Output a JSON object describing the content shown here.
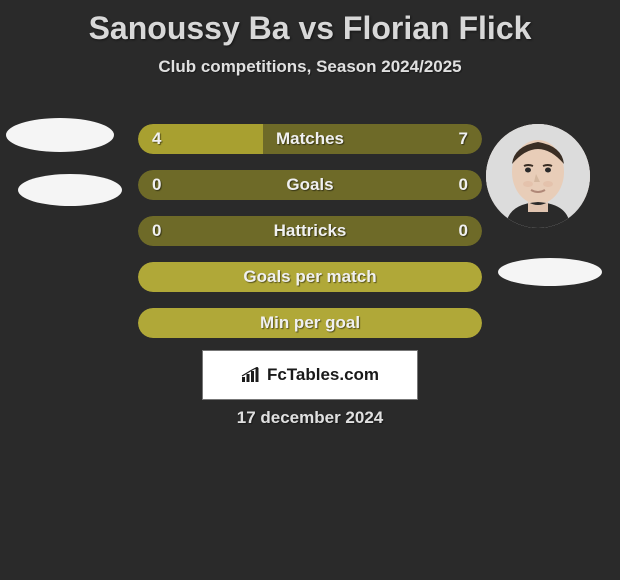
{
  "title": "Sanoussy Ba vs Florian Flick",
  "subtitle": "Club competitions, Season 2024/2025",
  "date": "17 december 2024",
  "colors": {
    "background": "#2a2a2a",
    "bar_fill": "#a8a030",
    "bar_empty": "#6e6a28",
    "bar_full_fill": "#b0a838",
    "text": "#e8e8e8",
    "badge_bg": "#ffffff",
    "badge_text": "#1a1a1a",
    "shape": "#f5f5f5"
  },
  "typography": {
    "title_size": 32,
    "title_weight": 800,
    "subtitle_size": 17,
    "label_size": 17,
    "label_weight": 700
  },
  "branding": {
    "label": "FcTables.com"
  },
  "bars": [
    {
      "label": "Matches",
      "left_val": "4",
      "right_val": "7",
      "left_pct": 36.4,
      "right_pct": 63.6,
      "fill_left_color": "#a8a030",
      "fill_right_color": "#6e6a28",
      "mode": "split"
    },
    {
      "label": "Goals",
      "left_val": "0",
      "right_val": "0",
      "left_pct": 0,
      "right_pct": 0,
      "fill_left_color": "#a8a030",
      "fill_right_color": "#6e6a28",
      "mode": "empty",
      "empty_bg": "#6e6a28"
    },
    {
      "label": "Hattricks",
      "left_val": "0",
      "right_val": "0",
      "left_pct": 0,
      "right_pct": 0,
      "fill_left_color": "#a8a030",
      "fill_right_color": "#6e6a28",
      "mode": "empty",
      "empty_bg": "#6e6a28"
    },
    {
      "label": "Goals per match",
      "left_val": "",
      "right_val": "",
      "left_pct": 100,
      "right_pct": 0,
      "fill_left_color": "#b0a838",
      "fill_right_color": "#b0a838",
      "mode": "full",
      "full_bg": "#b0a838"
    },
    {
      "label": "Min per goal",
      "left_val": "",
      "right_val": "",
      "left_pct": 100,
      "right_pct": 0,
      "fill_left_color": "#b0a838",
      "fill_right_color": "#b0a838",
      "mode": "full",
      "full_bg": "#b0a838"
    }
  ]
}
